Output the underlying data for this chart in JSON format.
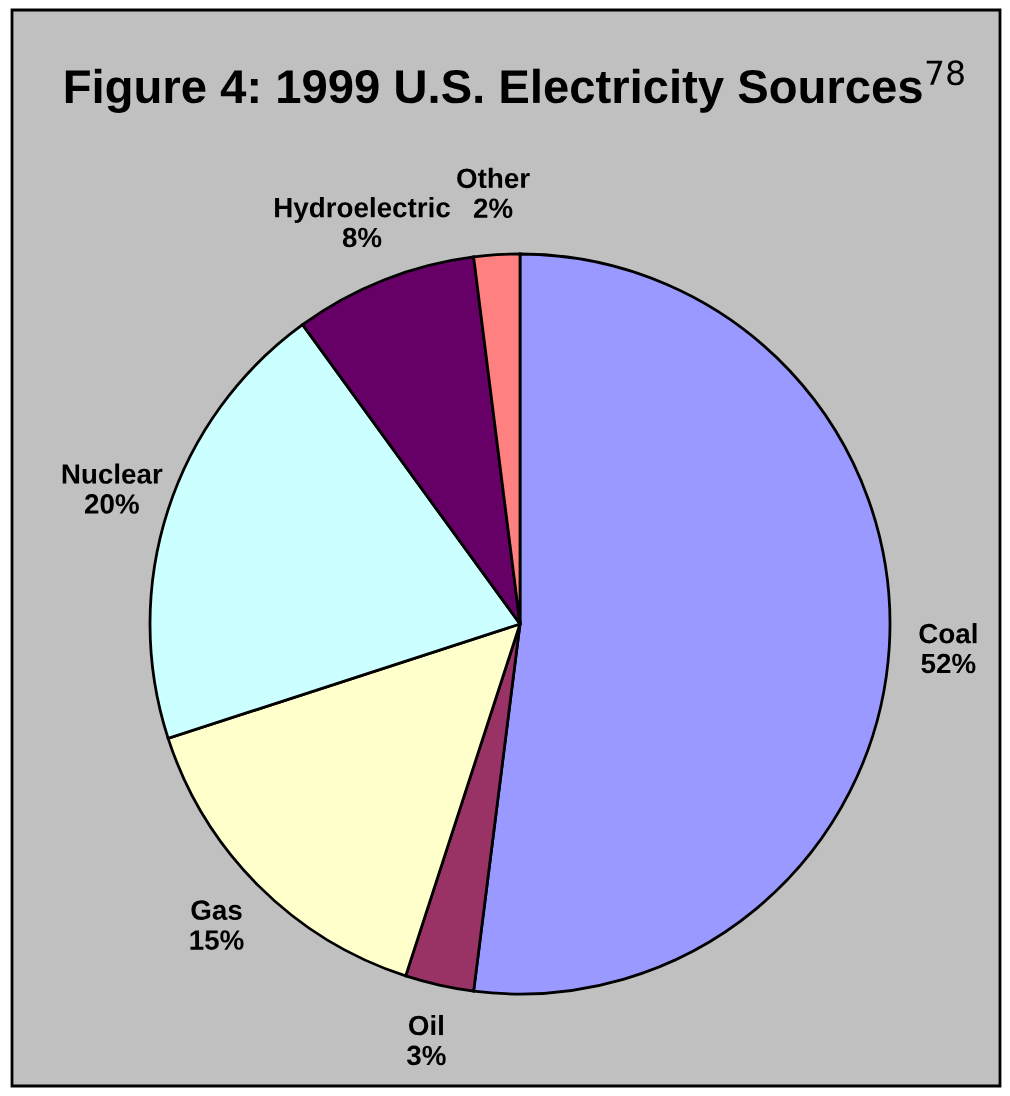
{
  "chart_data": {
    "type": "pie",
    "title": "Figure 4: 1999 U.S. Electricity Sources$^{78}$",
    "categories": [
      "Coal",
      "Oil",
      "Gas",
      "Nuclear",
      "Hydroelectric",
      "Other"
    ],
    "values": [
      52,
      3,
      15,
      20,
      8,
      2
    ],
    "value_labels": [
      "52%",
      "3%",
      "15%",
      "20%",
      "8%",
      "2%"
    ],
    "colors": [
      "#9999ff",
      "#993366",
      "#ffffcc",
      "#ccffff",
      "#660066",
      "#ff8080"
    ],
    "legend": false
  }
}
